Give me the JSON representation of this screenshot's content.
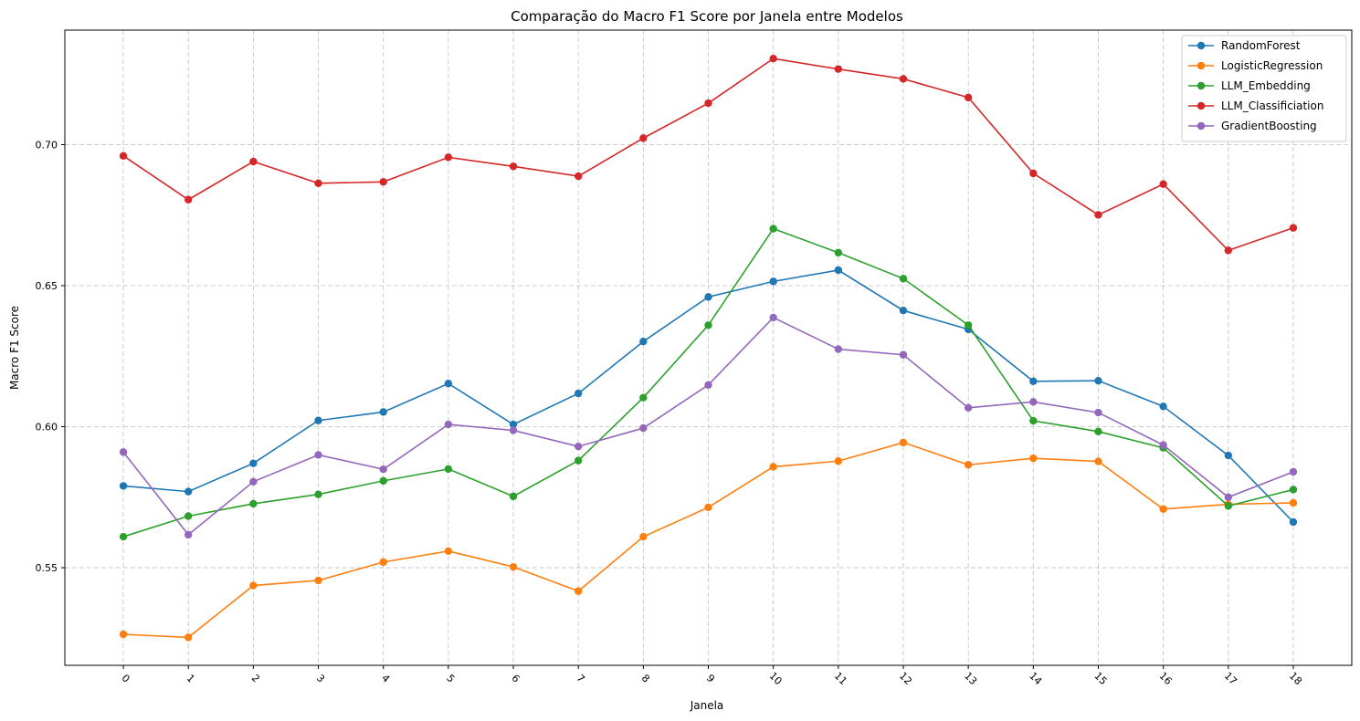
{
  "chart_data": {
    "type": "line",
    "title": "Comparação do Macro F1 Score por Janela entre Modelos",
    "xlabel": "Janela",
    "ylabel": "Macro F1 Score",
    "x": [
      0,
      1,
      2,
      3,
      4,
      5,
      6,
      7,
      8,
      9,
      10,
      11,
      12,
      13,
      14,
      15,
      16,
      17,
      18
    ],
    "x_tick_labels": [
      "0",
      "1",
      "2",
      "3",
      "4",
      "5",
      "6",
      "7",
      "8",
      "9",
      "10",
      "11",
      "12",
      "13",
      "14",
      "15",
      "16",
      "17",
      "18"
    ],
    "y_ticks": [
      0.55,
      0.6,
      0.65,
      0.7
    ],
    "y_tick_labels": [
      "0.55",
      "0.60",
      "0.65",
      "0.70"
    ],
    "xlim": [
      -0.9,
      18.9
    ],
    "ylim": [
      0.5154,
      0.7406
    ],
    "grid": true,
    "legend_position": "top-right",
    "series": [
      {
        "name": "RandomForest",
        "color": "#1f77b4",
        "values": [
          0.579,
          0.577,
          0.587,
          0.6022,
          0.6052,
          0.6153,
          0.6008,
          0.6118,
          0.6302,
          0.646,
          0.6515,
          0.6555,
          0.6412,
          0.6345,
          0.6161,
          0.6163,
          0.6072,
          0.5898,
          0.5662
        ]
      },
      {
        "name": "LogisticRegression",
        "color": "#ff7f0e",
        "values": [
          0.5264,
          0.5253,
          0.5437,
          0.5455,
          0.552,
          0.5559,
          0.5503,
          0.5417,
          0.561,
          0.5714,
          0.5858,
          0.5878,
          0.5944,
          0.5865,
          0.5888,
          0.5877,
          0.5708,
          0.5725,
          0.573
        ]
      },
      {
        "name": "LLM_Embedding",
        "color": "#2ca02c",
        "values": [
          0.561,
          0.5683,
          0.5727,
          0.576,
          0.5808,
          0.585,
          0.5753,
          0.588,
          0.6103,
          0.636,
          0.6702,
          0.6617,
          0.6525,
          0.636,
          0.6021,
          0.5983,
          0.5925,
          0.5719,
          0.5777
        ]
      },
      {
        "name": "LLM_Classificiation",
        "color": "#d62728",
        "values": [
          0.696,
          0.6805,
          0.694,
          0.6863,
          0.6868,
          0.6955,
          0.6923,
          0.6888,
          0.7023,
          0.7147,
          0.7305,
          0.7268,
          0.7233,
          0.7167,
          0.6898,
          0.6751,
          0.686,
          0.6625,
          0.6705
        ]
      },
      {
        "name": "GradientBoosting",
        "color": "#9467bd",
        "values": [
          0.591,
          0.5617,
          0.5805,
          0.59,
          0.5849,
          0.6008,
          0.5987,
          0.593,
          0.5995,
          0.6148,
          0.6387,
          0.6275,
          0.6255,
          0.6067,
          0.6088,
          0.605,
          0.5935,
          0.575,
          0.584
        ]
      }
    ]
  }
}
